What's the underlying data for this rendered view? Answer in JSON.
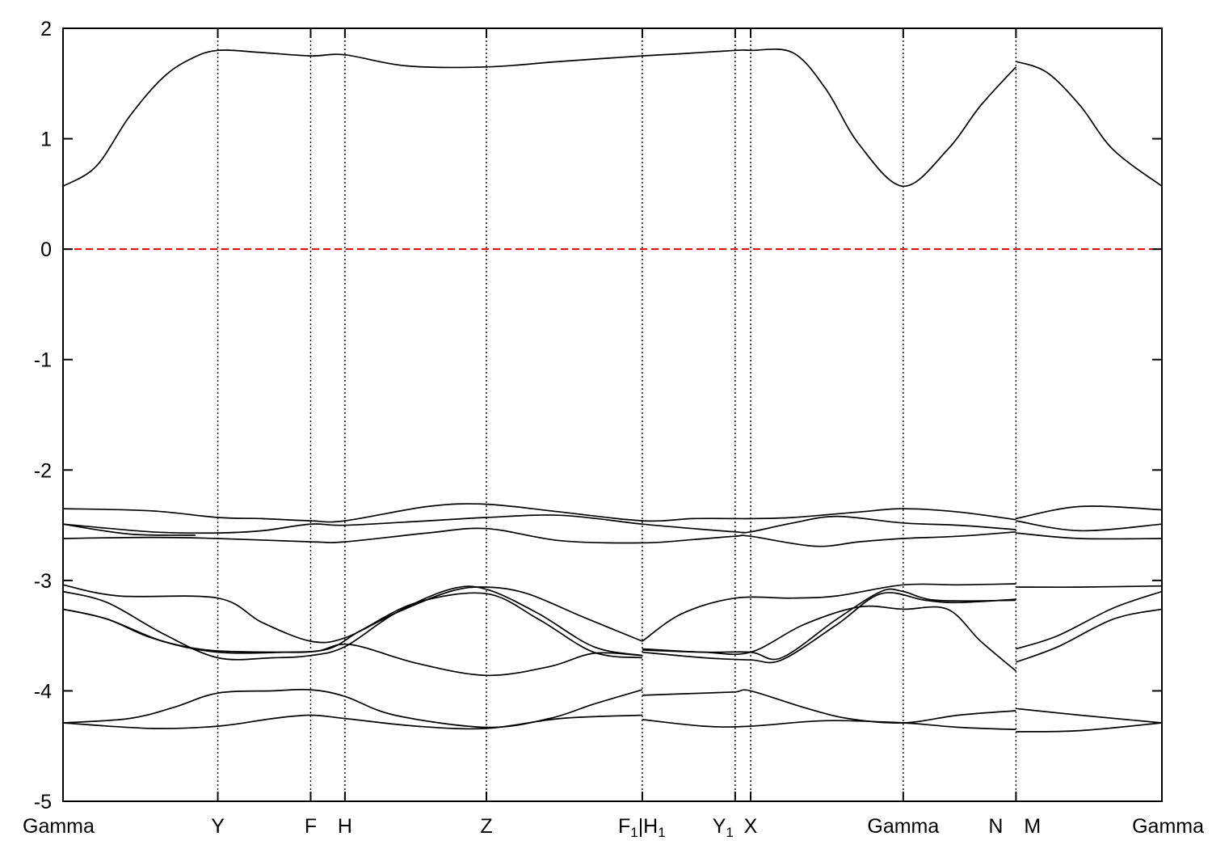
{
  "chart_data": {
    "type": "line",
    "title": "",
    "xlabel": "",
    "ylabel": "",
    "ylim": [
      -5,
      2
    ],
    "y_ticks": [
      "2",
      "1",
      "0",
      "-1",
      "-2",
      "-3",
      "-4",
      "-5"
    ],
    "fermi_level": 0,
    "fermi_color": "#e00000",
    "line_color": "#000000",
    "kpoints": [
      {
        "pos": 0.0,
        "label": "Gamma"
      },
      {
        "pos": 1.4,
        "label": "Y"
      },
      {
        "pos": 2.24,
        "label": "F"
      },
      {
        "pos": 2.55,
        "label": "H"
      },
      {
        "pos": 3.83,
        "label": "Z"
      },
      {
        "pos": 5.24,
        "label": "F",
        "sub": "1",
        "suffix": "|H",
        "suffix_sub": "1"
      },
      {
        "pos": 6.08,
        "label": "Y",
        "sub": "1"
      },
      {
        "pos": 6.22,
        "label": "X"
      },
      {
        "pos": 7.6,
        "label": "Gamma"
      },
      {
        "pos": 8.62,
        "label": "N",
        "suffix": " M"
      },
      {
        "pos": 9.94,
        "label": "Gamma"
      }
    ],
    "bands": [
      {
        "name": "",
        "points": [
          [
            0,
            0.57
          ],
          [
            0.3,
            0.75
          ],
          [
            0.6,
            1.2
          ],
          [
            0.9,
            1.55
          ],
          [
            1.15,
            1.72
          ],
          [
            1.4,
            1.8
          ],
          [
            1.8,
            1.78
          ],
          [
            2.24,
            1.75
          ],
          [
            2.55,
            1.76
          ],
          [
            3.1,
            1.66
          ],
          [
            3.83,
            1.65
          ],
          [
            4.5,
            1.7
          ],
          [
            5.24,
            1.75
          ],
          [
            5.6,
            1.77
          ],
          [
            6.08,
            1.8
          ],
          [
            6.22,
            1.8
          ],
          [
            6.6,
            1.78
          ],
          [
            6.9,
            1.45
          ],
          [
            7.2,
            0.95
          ],
          [
            7.6,
            0.57
          ],
          [
            8.0,
            0.9
          ],
          [
            8.3,
            1.3
          ],
          [
            8.62,
            1.65
          ]
        ]
      },
      {
        "name": "",
        "points": [
          [
            8.62,
            1.7
          ],
          [
            8.9,
            1.6
          ],
          [
            9.2,
            1.3
          ],
          [
            9.5,
            0.9
          ],
          [
            9.94,
            0.57
          ]
        ]
      },
      {
        "name": "",
        "points": [
          [
            0,
            -2.35
          ],
          [
            0.8,
            -2.37
          ],
          [
            1.4,
            -2.43
          ],
          [
            1.8,
            -2.44
          ],
          [
            2.24,
            -2.46
          ],
          [
            2.55,
            -2.46
          ],
          [
            3.3,
            -2.33
          ],
          [
            3.83,
            -2.31
          ],
          [
            4.5,
            -2.38
          ],
          [
            5.24,
            -2.46
          ],
          [
            5.7,
            -2.44
          ],
          [
            6.08,
            -2.44
          ],
          [
            6.22,
            -2.44
          ],
          [
            6.6,
            -2.43
          ],
          [
            7.2,
            -2.38
          ],
          [
            7.6,
            -2.35
          ],
          [
            8.1,
            -2.38
          ],
          [
            8.62,
            -2.45
          ]
        ]
      },
      {
        "name": "",
        "points": [
          [
            0,
            -2.49
          ],
          [
            0.8,
            -2.56
          ],
          [
            1.4,
            -2.57
          ],
          [
            1.8,
            -2.55
          ],
          [
            2.24,
            -2.49
          ],
          [
            2.55,
            -2.5
          ],
          [
            3.3,
            -2.46
          ],
          [
            3.83,
            -2.43
          ],
          [
            4.5,
            -2.41
          ],
          [
            5.24,
            -2.49
          ],
          [
            5.7,
            -2.53
          ],
          [
            6.08,
            -2.56
          ],
          [
            6.22,
            -2.56
          ],
          [
            6.6,
            -2.48
          ],
          [
            7.0,
            -2.42
          ],
          [
            7.6,
            -2.48
          ],
          [
            8.1,
            -2.5
          ],
          [
            8.62,
            -2.54
          ]
        ]
      },
      {
        "name": "",
        "points": [
          [
            0,
            -2.62
          ],
          [
            0.8,
            -2.61
          ],
          [
            1.4,
            -2.62
          ],
          [
            2.24,
            -2.65
          ],
          [
            2.55,
            -2.65
          ],
          [
            3.3,
            -2.57
          ],
          [
            3.83,
            -2.53
          ],
          [
            4.5,
            -2.64
          ],
          [
            5.24,
            -2.66
          ],
          [
            5.7,
            -2.63
          ],
          [
            6.08,
            -2.6
          ],
          [
            6.22,
            -2.6
          ],
          [
            6.8,
            -2.69
          ],
          [
            7.2,
            -2.65
          ],
          [
            7.6,
            -2.62
          ],
          [
            8.1,
            -2.6
          ],
          [
            8.62,
            -2.56
          ]
        ]
      },
      {
        "name": "",
        "points": [
          [
            0,
            -2.49
          ],
          [
            0.6,
            -2.58
          ],
          [
            1.2,
            -2.59
          ]
        ]
      },
      {
        "name": "",
        "points": [
          [
            8.62,
            -2.44
          ],
          [
            9.2,
            -2.33
          ],
          [
            9.94,
            -2.36
          ]
        ]
      },
      {
        "name": "",
        "points": [
          [
            8.62,
            -2.46
          ],
          [
            9.2,
            -2.55
          ],
          [
            9.94,
            -2.49
          ]
        ]
      },
      {
        "name": "",
        "points": [
          [
            8.62,
            -2.57
          ],
          [
            9.2,
            -2.62
          ],
          [
            9.94,
            -2.62
          ]
        ]
      },
      {
        "name": "",
        "points": [
          [
            0,
            -3.04
          ],
          [
            0.5,
            -3.14
          ],
          [
            1.4,
            -3.16
          ],
          [
            1.8,
            -3.38
          ],
          [
            2.24,
            -3.55
          ],
          [
            2.55,
            -3.52
          ],
          [
            3.0,
            -3.3
          ],
          [
            3.5,
            -3.1
          ],
          [
            3.83,
            -3.06
          ],
          [
            4.2,
            -3.12
          ],
          [
            4.7,
            -3.33
          ],
          [
            5.24,
            -3.55
          ]
        ]
      },
      {
        "name": "",
        "points": [
          [
            0,
            -3.1
          ],
          [
            0.4,
            -3.2
          ],
          [
            0.9,
            -3.48
          ],
          [
            1.4,
            -3.7
          ],
          [
            1.9,
            -3.7
          ],
          [
            2.24,
            -3.68
          ],
          [
            2.55,
            -3.6
          ],
          [
            3.0,
            -3.3
          ],
          [
            3.5,
            -3.08
          ],
          [
            3.83,
            -3.08
          ],
          [
            4.3,
            -3.3
          ],
          [
            4.8,
            -3.6
          ],
          [
            5.24,
            -3.68
          ]
        ]
      },
      {
        "name": "",
        "points": [
          [
            0,
            -3.26
          ],
          [
            0.4,
            -3.35
          ],
          [
            0.9,
            -3.55
          ],
          [
            1.4,
            -3.65
          ],
          [
            2.0,
            -3.65
          ],
          [
            2.4,
            -3.62
          ],
          [
            2.7,
            -3.45
          ],
          [
            3.2,
            -3.2
          ],
          [
            3.83,
            -3.12
          ],
          [
            4.3,
            -3.35
          ],
          [
            4.8,
            -3.65
          ],
          [
            5.24,
            -3.7
          ]
        ]
      },
      {
        "name": "",
        "points": [
          [
            0,
            -3.26
          ],
          [
            0.4,
            -3.35
          ],
          [
            0.8,
            -3.52
          ],
          [
            1.3,
            -3.63
          ],
          [
            2.0,
            -3.65
          ],
          [
            2.3,
            -3.64
          ],
          [
            2.6,
            -3.58
          ],
          [
            3.2,
            -3.75
          ],
          [
            3.83,
            -3.86
          ],
          [
            4.4,
            -3.78
          ],
          [
            4.8,
            -3.66
          ],
          [
            5.24,
            -3.68
          ]
        ]
      },
      {
        "name": "",
        "points": [
          [
            5.24,
            -3.55
          ],
          [
            5.6,
            -3.3
          ],
          [
            6.08,
            -3.16
          ],
          [
            6.6,
            -3.16
          ],
          [
            7.0,
            -3.14
          ],
          [
            7.6,
            -3.04
          ],
          [
            8.1,
            -3.04
          ],
          [
            8.62,
            -3.03
          ]
        ]
      },
      {
        "name": "",
        "points": [
          [
            5.24,
            -3.62
          ],
          [
            5.8,
            -3.65
          ],
          [
            6.22,
            -3.65
          ],
          [
            6.7,
            -3.4
          ],
          [
            7.2,
            -3.24
          ],
          [
            7.6,
            -3.26
          ],
          [
            8.0,
            -3.26
          ],
          [
            8.3,
            -3.55
          ],
          [
            8.62,
            -3.82
          ]
        ]
      },
      {
        "name": "",
        "points": [
          [
            5.24,
            -3.65
          ],
          [
            5.8,
            -3.7
          ],
          [
            6.22,
            -3.72
          ],
          [
            6.5,
            -3.72
          ],
          [
            7.0,
            -3.4
          ],
          [
            7.4,
            -3.12
          ],
          [
            7.8,
            -3.18
          ],
          [
            8.1,
            -3.2
          ],
          [
            8.62,
            -3.17
          ]
        ]
      },
      {
        "name": "",
        "points": [
          [
            5.24,
            -3.63
          ],
          [
            5.8,
            -3.65
          ],
          [
            6.22,
            -3.65
          ],
          [
            6.5,
            -3.7
          ],
          [
            7.0,
            -3.35
          ],
          [
            7.4,
            -3.1
          ],
          [
            7.6,
            -3.1
          ],
          [
            7.9,
            -3.18
          ],
          [
            8.62,
            -3.18
          ]
        ]
      },
      {
        "name": "",
        "points": [
          [
            8.62,
            -3.06
          ],
          [
            9.2,
            -3.06
          ],
          [
            9.94,
            -3.05
          ]
        ]
      },
      {
        "name": "",
        "points": [
          [
            8.62,
            -3.62
          ],
          [
            9.0,
            -3.5
          ],
          [
            9.5,
            -3.25
          ],
          [
            9.94,
            -3.1
          ]
        ]
      },
      {
        "name": "",
        "points": [
          [
            8.62,
            -3.74
          ],
          [
            9.0,
            -3.6
          ],
          [
            9.5,
            -3.35
          ],
          [
            9.94,
            -3.26
          ]
        ]
      },
      {
        "name": "",
        "points": [
          [
            0,
            -4.29
          ],
          [
            0.6,
            -4.25
          ],
          [
            1.0,
            -4.15
          ],
          [
            1.4,
            -4.02
          ],
          [
            1.9,
            -4.0
          ],
          [
            2.24,
            -3.99
          ],
          [
            2.55,
            -4.05
          ],
          [
            3.0,
            -4.22
          ],
          [
            3.83,
            -4.33
          ],
          [
            4.4,
            -4.25
          ],
          [
            4.8,
            -4.12
          ],
          [
            5.24,
            -3.99
          ]
        ]
      },
      {
        "name": "",
        "points": [
          [
            0,
            -4.29
          ],
          [
            0.8,
            -4.34
          ],
          [
            1.4,
            -4.32
          ],
          [
            1.9,
            -4.25
          ],
          [
            2.24,
            -4.22
          ],
          [
            2.55,
            -4.25
          ],
          [
            3.2,
            -4.32
          ],
          [
            3.83,
            -4.34
          ],
          [
            4.5,
            -4.25
          ],
          [
            5.24,
            -4.22
          ]
        ]
      },
      {
        "name": "",
        "points": [
          [
            5.24,
            -4.04
          ],
          [
            5.8,
            -4.02
          ],
          [
            6.08,
            -4.01
          ],
          [
            6.22,
            -4.0
          ],
          [
            6.7,
            -4.15
          ],
          [
            7.1,
            -4.25
          ],
          [
            7.6,
            -4.29
          ],
          [
            8.1,
            -4.22
          ],
          [
            8.62,
            -4.18
          ]
        ]
      },
      {
        "name": "",
        "points": [
          [
            5.24,
            -4.26
          ],
          [
            5.8,
            -4.32
          ],
          [
            6.22,
            -4.32
          ],
          [
            6.9,
            -4.27
          ],
          [
            7.6,
            -4.29
          ],
          [
            8.1,
            -4.33
          ],
          [
            8.62,
            -4.35
          ]
        ]
      },
      {
        "name": "",
        "points": [
          [
            8.62,
            -4.16
          ],
          [
            9.2,
            -4.22
          ],
          [
            9.94,
            -4.29
          ]
        ]
      },
      {
        "name": "",
        "points": [
          [
            8.62,
            -4.37
          ],
          [
            9.2,
            -4.36
          ],
          [
            9.94,
            -4.29
          ]
        ]
      }
    ]
  }
}
